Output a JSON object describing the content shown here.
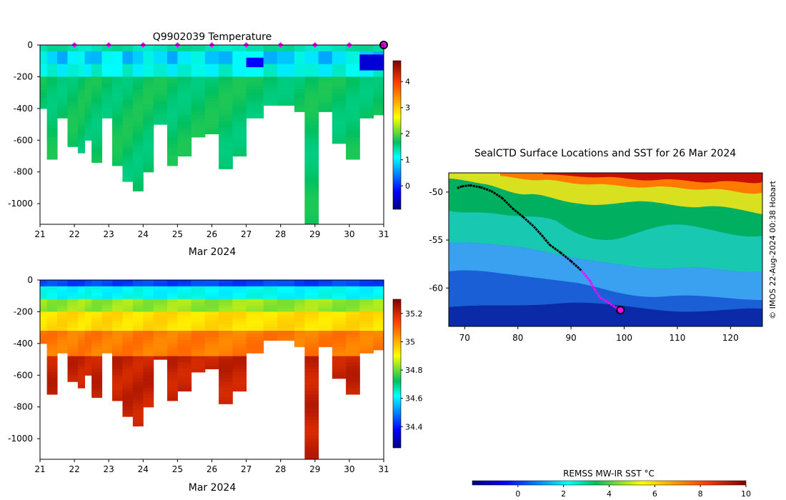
{
  "temperature_panel": {
    "title": "Q9902039  Temperature",
    "xlabel": "Mar 2024",
    "x_ticks": [
      "21",
      "22",
      "23",
      "24",
      "25",
      "26",
      "27",
      "28",
      "29",
      "30",
      "31"
    ],
    "y_ticks": [
      "0",
      "-200",
      "-400",
      "-600",
      "-800",
      "-1000"
    ],
    "colorbar_ticks": [
      "0",
      "1",
      "2",
      "3",
      "4"
    ],
    "colorbar_range": [
      -0.9,
      4.8
    ]
  },
  "salinity_panel": {
    "xlabel": "Mar 2024",
    "x_ticks": [
      "21",
      "22",
      "23",
      "24",
      "25",
      "26",
      "27",
      "28",
      "29",
      "30",
      "31"
    ],
    "y_ticks": [
      "0",
      "-200",
      "-400",
      "-600",
      "-800",
      "-1000"
    ],
    "colorbar_ticks": [
      "34.4",
      "34.6",
      "34.8",
      "35",
      "35.2"
    ],
    "colorbar_range": [
      34.25,
      35.3
    ]
  },
  "map_panel": {
    "title": "SealCTD Surface Locations and SST for 26 Mar 2024",
    "lon_ticks": [
      "70",
      "80",
      "90",
      "100",
      "110",
      "120"
    ],
    "lat_ticks": [
      "-50",
      "-55",
      "-60"
    ],
    "lon_range": [
      67,
      126
    ],
    "lat_range": [
      -64,
      -48
    ],
    "current_position": {
      "lon": 99.3,
      "lat": -62.3
    },
    "credit": "© IMOS 22-Aug-2024 00:38 Hobart"
  },
  "sst_colorbar": {
    "label": "REMSS MW-IR SST °C",
    "ticks": [
      "0",
      "2",
      "4",
      "6",
      "8",
      "10"
    ],
    "range": [
      -2,
      10
    ]
  },
  "chart_data": [
    {
      "type": "heatmap",
      "title": "Q9902039  Temperature",
      "xlabel": "Mar 2024",
      "ylabel": "",
      "xlim": [
        21,
        31
      ],
      "ylim": [
        -1130,
        0
      ],
      "daily_marker_days": [
        22,
        23,
        24,
        25,
        26,
        27,
        28,
        29,
        30
      ],
      "profile_max_depths": [
        {
          "day": 21.0,
          "depth": 400
        },
        {
          "day": 21.2,
          "depth": 720
        },
        {
          "day": 21.5,
          "depth": 450
        },
        {
          "day": 21.8,
          "depth": 630
        },
        {
          "day": 22.1,
          "depth": 680
        },
        {
          "day": 22.3,
          "depth": 600
        },
        {
          "day": 22.5,
          "depth": 740
        },
        {
          "day": 22.8,
          "depth": 450
        },
        {
          "day": 23.1,
          "depth": 750
        },
        {
          "day": 23.4,
          "depth": 860
        },
        {
          "day": 23.7,
          "depth": 920
        },
        {
          "day": 24.0,
          "depth": 800
        },
        {
          "day": 24.3,
          "depth": 500
        },
        {
          "day": 24.7,
          "depth": 750
        },
        {
          "day": 25.0,
          "depth": 690
        },
        {
          "day": 25.4,
          "depth": 570
        },
        {
          "day": 25.8,
          "depth": 560
        },
        {
          "day": 26.2,
          "depth": 780
        },
        {
          "day": 26.6,
          "depth": 690
        },
        {
          "day": 27.0,
          "depth": 450
        },
        {
          "day": 27.5,
          "depth": 380
        },
        {
          "day": 27.9,
          "depth": 380
        },
        {
          "day": 28.4,
          "depth": 420
        },
        {
          "day": 28.7,
          "depth": 1130
        },
        {
          "day": 29.1,
          "depth": 420
        },
        {
          "day": 29.5,
          "depth": 620
        },
        {
          "day": 29.9,
          "depth": 710
        },
        {
          "day": 30.3,
          "depth": 450
        },
        {
          "day": 30.7,
          "depth": 430
        },
        {
          "day": 31.0,
          "depth": 460
        }
      ],
      "colorbar_label_range": [
        0,
        4
      ]
    },
    {
      "type": "heatmap",
      "title": "",
      "xlabel": "Mar 2024",
      "ylabel": "",
      "xlim": [
        21,
        31
      ],
      "ylim": [
        -1130,
        0
      ],
      "colorbar_label_range": [
        34.4,
        35.2
      ]
    },
    {
      "type": "scatter",
      "title": "SealCTD Surface Locations and SST for 26 Mar 2024",
      "xlabel": "",
      "ylabel": "",
      "xlim": [
        67,
        126
      ],
      "ylim": [
        -64,
        -48
      ],
      "track": [
        [
          68.6,
          -49.6
        ],
        [
          69.5,
          -49.4
        ],
        [
          71,
          -49.3
        ],
        [
          73,
          -49.5
        ],
        [
          75,
          -49.9
        ],
        [
          77,
          -50.6
        ],
        [
          79,
          -51.7
        ],
        [
          81,
          -52.6
        ],
        [
          83,
          -53.6
        ],
        [
          84.5,
          -54.5
        ],
        [
          86,
          -55.5
        ],
        [
          88,
          -56.3
        ],
        [
          90,
          -57.2
        ],
        [
          92,
          -58.2
        ],
        [
          93.5,
          -59.2
        ],
        [
          94.5,
          -60.2
        ],
        [
          95.5,
          -61.0
        ],
        [
          97,
          -61.5
        ],
        [
          98.3,
          -62.0
        ],
        [
          99.3,
          -62.3
        ]
      ],
      "sst_range": [
        -2,
        10
      ]
    }
  ]
}
